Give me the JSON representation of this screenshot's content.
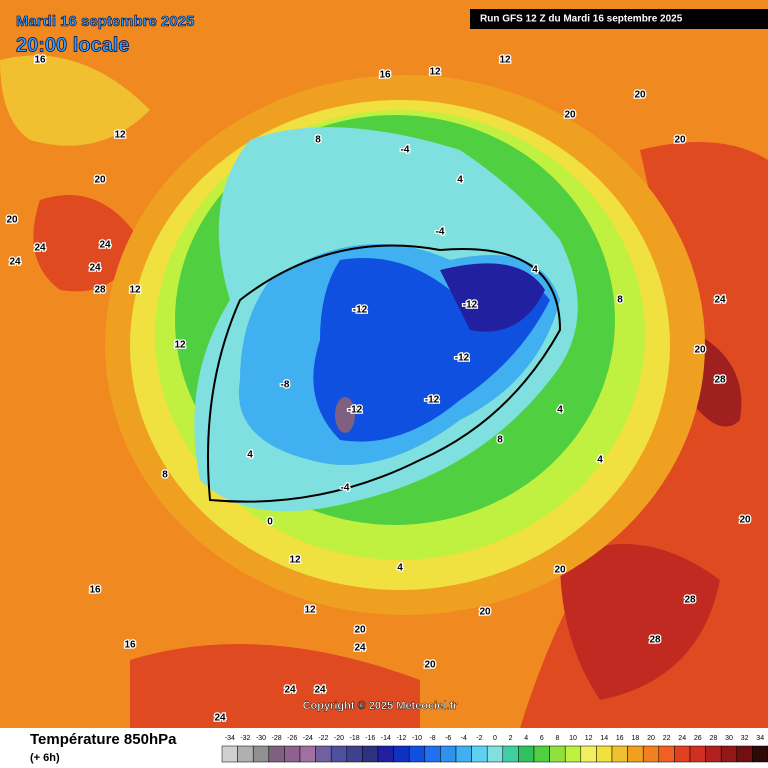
{
  "header": {
    "date": "Mardi 16 septembre 2025",
    "time": "20:00 locale",
    "run": "Run GFS 12 Z du Mardi 16 septembre 2025"
  },
  "copyright": "Copyright © 2025 Meteociel.fr",
  "footer": {
    "title": "Température 850hPa",
    "lead": "(+ 6h)"
  },
  "legend": {
    "values": [
      -34,
      -32,
      -30,
      -28,
      -26,
      -24,
      -22,
      -20,
      -18,
      -16,
      -14,
      -12,
      -10,
      -8,
      -6,
      -4,
      -2,
      0,
      2,
      4,
      6,
      8,
      10,
      12,
      14,
      16,
      18,
      20,
      22,
      24,
      26,
      28,
      30,
      32,
      34
    ],
    "colors": [
      "#d0d0d0",
      "#b0b0b0",
      "#909090",
      "#806080",
      "#906090",
      "#a070a0",
      "#7060a0",
      "#5050a0",
      "#404090",
      "#303080",
      "#2020a0",
      "#1030c0",
      "#1050e0",
      "#2070f0",
      "#3090f0",
      "#40b0f0",
      "#60d0f0",
      "#80e0e0",
      "#40d0a0",
      "#30c060",
      "#50d040",
      "#90e040",
      "#c0f040",
      "#f0f060",
      "#f0e040",
      "#f0c030",
      "#f0a020",
      "#f08020",
      "#f06020",
      "#e04020",
      "#d03020",
      "#b02020",
      "#901818",
      "#701010",
      "#300808"
    ]
  },
  "map_labels": [
    16,
    12,
    20,
    20,
    24,
    24,
    24,
    24,
    28,
    12,
    12,
    8,
    12,
    12,
    16,
    16,
    20,
    24,
    24,
    24,
    24,
    20,
    28,
    28,
    20,
    28,
    20,
    24,
    20,
    20,
    20,
    12,
    12,
    16,
    8,
    -4,
    4,
    -4,
    -12,
    -12,
    -12,
    -12,
    -12,
    -8,
    4,
    0,
    -4,
    8,
    4,
    4,
    4,
    20,
    20,
    4,
    8
  ]
}
